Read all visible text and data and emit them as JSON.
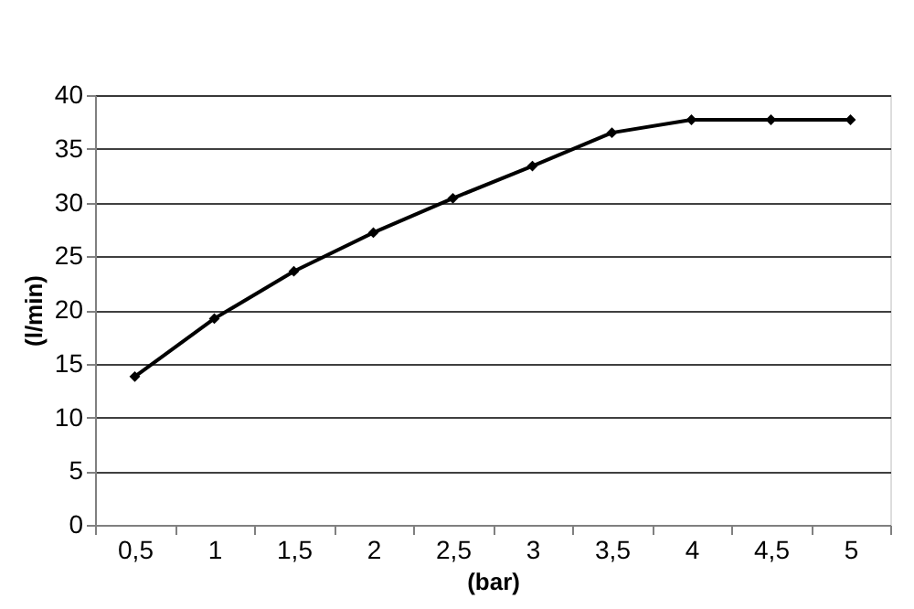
{
  "chart_data": {
    "type": "line",
    "xlabel": "(bar)",
    "ylabel": "(l/min)",
    "categories": [
      "0,5",
      "1",
      "1,5",
      "2",
      "2,5",
      "3",
      "3,5",
      "4",
      "4,5",
      "5"
    ],
    "series": [
      {
        "color": "#000000",
        "values": [
          13.8,
          19.2,
          23.6,
          27.2,
          30.4,
          33.4,
          36.5,
          37.7,
          37.7,
          37.7
        ]
      }
    ],
    "ylim": [
      0,
      40
    ],
    "yticks": [
      0,
      5,
      10,
      15,
      20,
      25,
      30,
      35,
      40
    ],
    "grid": "y",
    "marker": "diamond",
    "line_style": "solid"
  }
}
